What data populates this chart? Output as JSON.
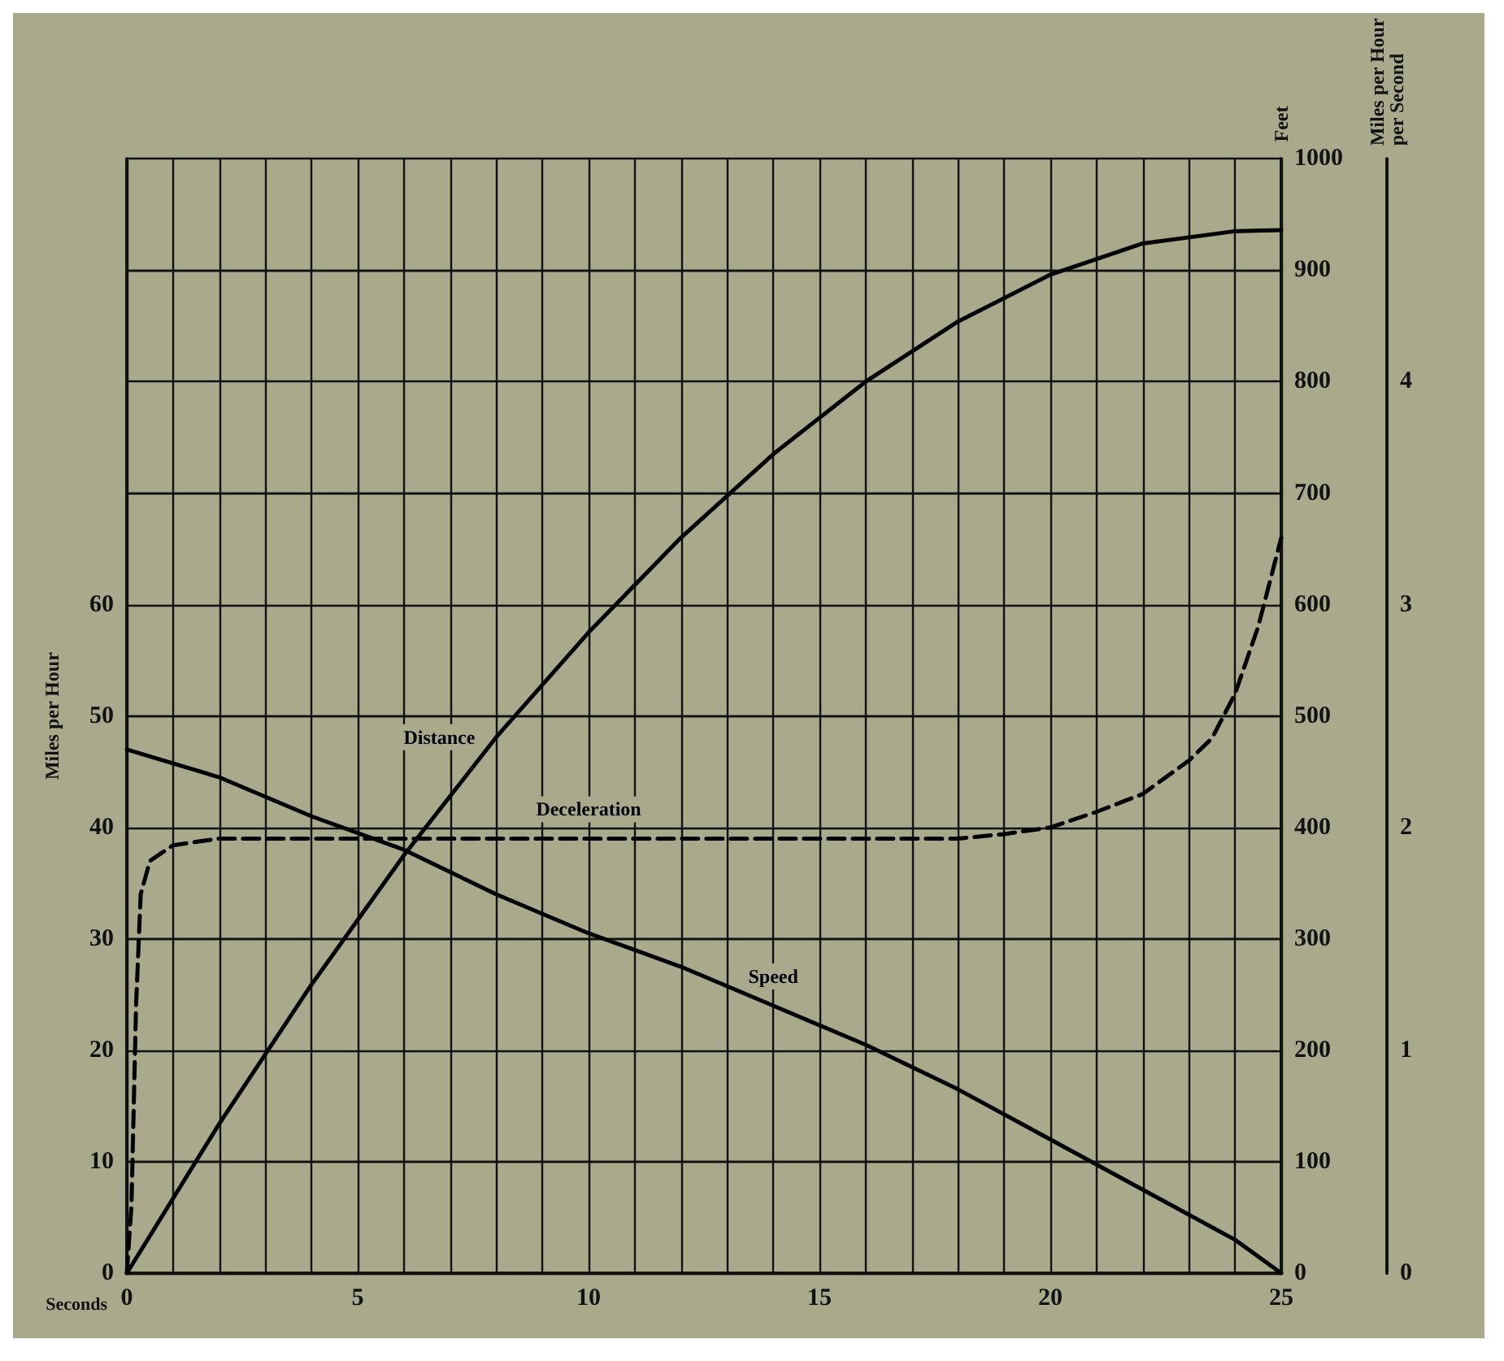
{
  "chart_data": {
    "type": "line",
    "xlabel": "Seconds",
    "ylabel": "Miles per Hour",
    "y2label": "Feet",
    "y3label": "Miles per Hour per Second",
    "xlim": [
      0,
      25
    ],
    "xticks": [
      0,
      5,
      10,
      15,
      20,
      25
    ],
    "ylim": [
      0,
      100
    ],
    "yticks": [
      0,
      10,
      20,
      30,
      40,
      50,
      60
    ],
    "y2lim": [
      0,
      1000
    ],
    "y2ticks": [
      0,
      100,
      200,
      300,
      400,
      500,
      600,
      700,
      800,
      900,
      1000
    ],
    "y3lim": [
      0,
      5
    ],
    "y3ticks": [
      0,
      1,
      2,
      3,
      4
    ],
    "grid": true,
    "legend": false,
    "marker": "none",
    "series": [
      {
        "name": "Distance",
        "color": "#000000",
        "axis": "y2",
        "line_style": "solid",
        "x": [
          0,
          2,
          4,
          6,
          8,
          10,
          12,
          14,
          16,
          18,
          20,
          22,
          24,
          25
        ],
        "values": [
          0,
          134,
          259,
          375,
          481,
          575,
          660,
          735,
          800,
          854,
          896,
          924,
          935,
          936
        ]
      },
      {
        "name": "Speed",
        "color": "#000000",
        "axis": "y",
        "line_style": "solid",
        "x": [
          0,
          2,
          4,
          6,
          8,
          10,
          12,
          14,
          16,
          18,
          20,
          22,
          24,
          25
        ],
        "values": [
          47,
          44.5,
          41,
          38,
          34,
          30.5,
          27.5,
          24,
          20.5,
          16.5,
          12,
          7.5,
          3,
          0
        ]
      },
      {
        "name": "Deceleration",
        "color": "#000000",
        "axis": "y3",
        "line_style": "dashed",
        "x": [
          0,
          0.1,
          0.2,
          0.3,
          0.5,
          1,
          2,
          10,
          18,
          19,
          20,
          21,
          22,
          23,
          23.5,
          24,
          24.5,
          25
        ],
        "values": [
          0,
          0.3,
          1.2,
          1.7,
          1.85,
          1.92,
          1.95,
          1.95,
          1.95,
          1.97,
          2,
          2.07,
          2.15,
          2.3,
          2.4,
          2.6,
          2.9,
          3.3
        ]
      }
    ]
  }
}
